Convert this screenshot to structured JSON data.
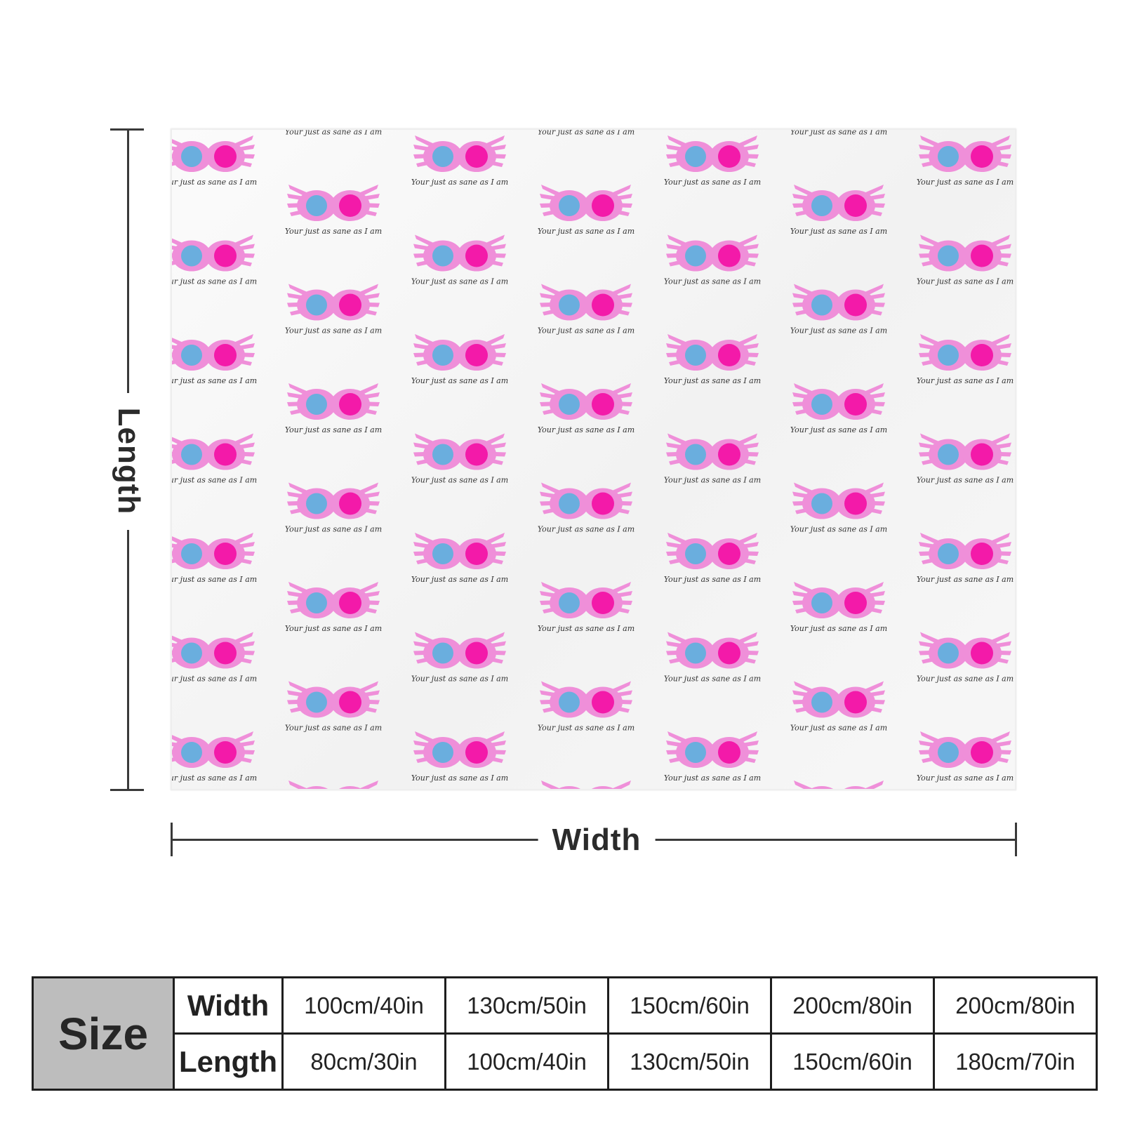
{
  "product": {
    "pattern_caption": "Your just as sane as I am",
    "colors": {
      "frame": "#ef8fd9",
      "left_lens": "#6aaede",
      "right_lens": "#f31aa9",
      "caption": "#333333"
    }
  },
  "dimensions": {
    "length_label": "Length",
    "width_label": "Width"
  },
  "size_table": {
    "header": "Size",
    "rows": [
      {
        "label": "Width",
        "values": [
          "100cm/40in",
          "130cm/50in",
          "150cm/60in",
          "200cm/80in",
          "200cm/80in"
        ]
      },
      {
        "label": "Length",
        "values": [
          "80cm/30in",
          "100cm/40in",
          "130cm/50in",
          "150cm/60in",
          "180cm/70in"
        ]
      }
    ]
  }
}
